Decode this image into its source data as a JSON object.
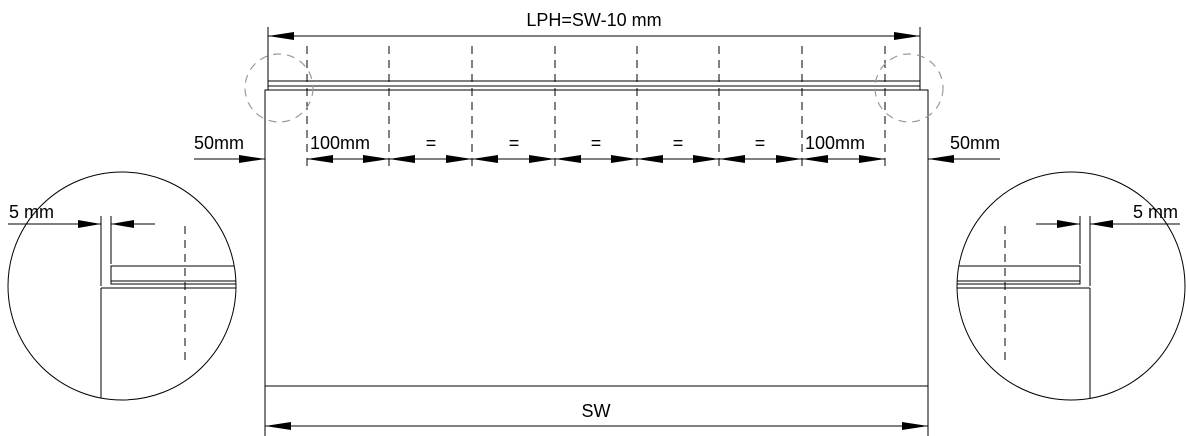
{
  "dimensions": {
    "top_overall": "LPH=SW-10 mm",
    "bottom_overall": "SW",
    "left_offset": "50mm",
    "right_offset": "50mm",
    "first_spacing": "100mm",
    "last_spacing": "100mm",
    "equal_spacings": [
      "=",
      "=",
      "=",
      "=",
      "="
    ],
    "detail_left_gap": "5 mm",
    "detail_right_gap": "5 mm"
  }
}
